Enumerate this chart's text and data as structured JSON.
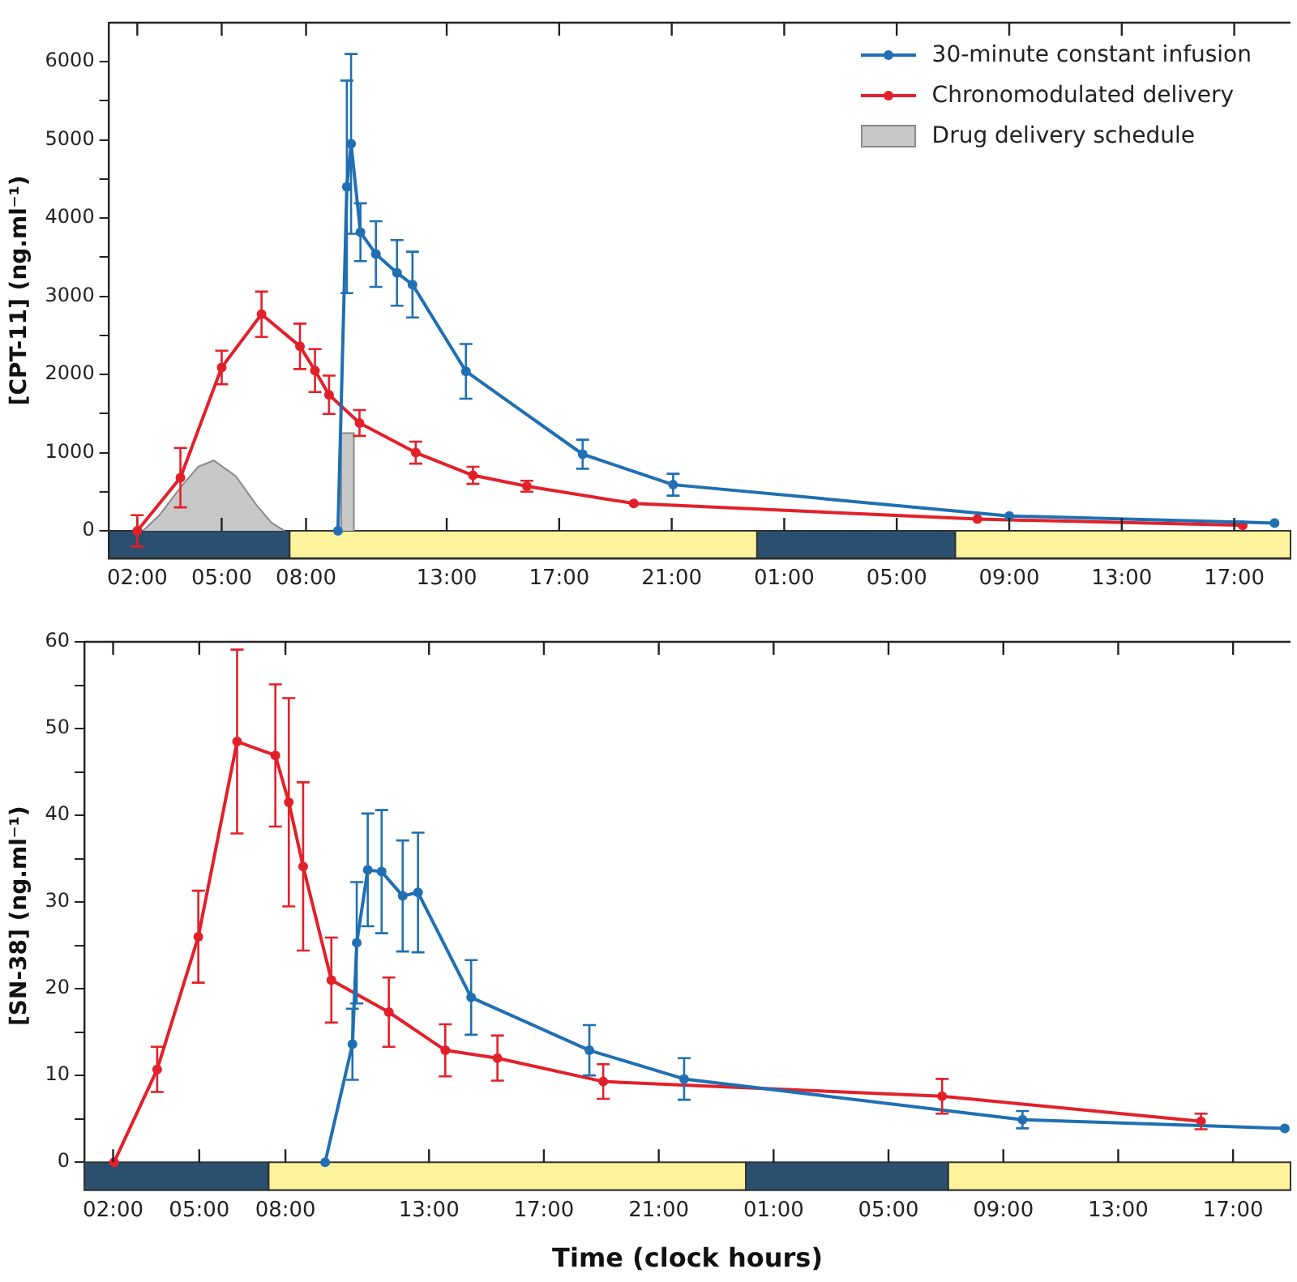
{
  "chart_data": [
    {
      "type": "line",
      "ylabel": "[CPT-11] (ng.ml⁻¹)",
      "legend": "top right",
      "grid": false,
      "xlim": [
        "--01-01T01:00",
        "--01-02T19:00"
      ],
      "xticks": [
        {
          "value": "--01-01T02:00",
          "label": "02:00"
        },
        {
          "value": "--01-01T05:00",
          "label": "05:00"
        },
        {
          "value": "--01-01T08:00",
          "label": "08:00"
        },
        {
          "value": "--01-01T13:00",
          "label": "13:00"
        },
        {
          "value": "--01-01T17:00",
          "label": "17:00"
        },
        {
          "value": "--01-01T21:00",
          "label": "21:00"
        },
        {
          "value": "--01-02T01:00",
          "label": "01:00"
        },
        {
          "value": "--01-02T05:00",
          "label": "05:00"
        },
        {
          "value": "--01-02T09:00",
          "label": "09:00"
        },
        {
          "value": "--01-02T13:00",
          "label": "13:00"
        },
        {
          "value": "--01-02T17:00",
          "label": "17:00"
        }
      ],
      "ylim": [
        -350,
        6500
      ],
      "yticks": [
        0,
        {
          "value": 500,
          "label": null
        },
        1000,
        {
          "value": 1500,
          "label": null
        },
        2000,
        {
          "value": 2500,
          "label": null
        },
        3000,
        {
          "value": 3500,
          "label": null
        },
        4000,
        {
          "value": 4500,
          "label": null
        },
        5000,
        {
          "value": 5500,
          "label": null
        },
        6000
      ],
      "bands": [
        {
          "axis": "x",
          "from": "--01-01T01:00",
          "to": "--01-01T07:25",
          "color": "#2b4f6e"
        },
        {
          "axis": "x",
          "from": "--01-01T07:25",
          "to": "--01-02T00:02",
          "color": "#fcf39c"
        },
        {
          "axis": "x",
          "from": "--01-02T00:02",
          "to": "--01-02T07:05",
          "color": "#2b4f6e"
        },
        {
          "axis": "x",
          "from": "--01-02T07:05",
          "to": "--01-02T19:00",
          "color": "#fcf39c"
        }
      ],
      "series": [
        {
          "name": "Drug delivery schedule",
          "type": "area",
          "marker": "none",
          "color": "#c8c8c8",
          "x": [
            "--01-01T02:12",
            "--01-01T02:47",
            "--01-01T03:34",
            "--01-01T04:10",
            "--01-01T04:43",
            "--01-01T05:30",
            "--01-01T06:14",
            "--01-01T06:47",
            "--01-01T07:14",
            "--01-01T08:30",
            "--01-01T09:15",
            "--01-01T09:15",
            "--01-01T09:42",
            "--01-01T09:42"
          ],
          "values": [
            0,
            200,
            570,
            820,
            900,
            700,
            330,
            100,
            0,
            null,
            0,
            1250,
            1250,
            0
          ]
        },
        {
          "name": "30-minute constant infusion",
          "marker": "circle",
          "color": "#1f6fb2",
          "x": [
            "--01-01T09:08",
            "--01-01T09:27",
            "--01-01T09:36",
            "--01-01T09:56",
            "--01-01T10:29",
            "--01-01T11:14",
            "--01-01T11:47",
            "--01-01T13:41",
            "--01-01T17:50",
            "--01-01T21:03",
            "--01-02T09:00",
            "--01-02T18:26"
          ],
          "values": [
            0,
            4400,
            4950,
            3820,
            3540,
            3300,
            3150,
            2040,
            980,
            590,
            190,
            100
          ],
          "errors": [
            null,
            1360,
            1150,
            370,
            420,
            420,
            420,
            350,
            185,
            140,
            null,
            null
          ]
        },
        {
          "name": "Chronomodulated delivery",
          "marker": "circle",
          "color": "#e3202a",
          "x": [
            "--01-01T02:00",
            "--01-01T03:32",
            "--01-01T05:00",
            "--01-01T06:25",
            "--01-01T07:47",
            "--01-01T08:19",
            "--01-01T08:49",
            "--01-01T09:54",
            "--01-01T11:54",
            "--01-01T13:56",
            "--01-01T15:51",
            "--01-01T19:39",
            "--01-02T07:52",
            "--01-02T17:18"
          ],
          "values": [
            0,
            680,
            2090,
            2770,
            2360,
            2050,
            1740,
            1380,
            1000,
            710,
            570,
            350,
            150,
            70
          ],
          "errors": [
            200,
            380,
            215,
            290,
            290,
            275,
            245,
            165,
            140,
            110,
            70,
            null,
            null,
            null
          ]
        }
      ]
    },
    {
      "type": "line",
      "ylabel": "[SN-38] (ng.ml⁻¹)",
      "xlabel": "Time (clock hours)",
      "grid": false,
      "xlim": [
        "--01-01T01:00",
        "--01-02T19:00"
      ],
      "xticks": [
        {
          "value": "--01-01T02:00",
          "label": "02:00"
        },
        {
          "value": "--01-01T05:00",
          "label": "05:00"
        },
        {
          "value": "--01-01T08:00",
          "label": "08:00"
        },
        {
          "value": "--01-01T13:00",
          "label": "13:00"
        },
        {
          "value": "--01-01T17:00",
          "label": "17:00"
        },
        {
          "value": "--01-01T21:00",
          "label": "21:00"
        },
        {
          "value": "--01-02T01:00",
          "label": "01:00"
        },
        {
          "value": "--01-02T05:00",
          "label": "05:00"
        },
        {
          "value": "--01-02T09:00",
          "label": "09:00"
        },
        {
          "value": "--01-02T13:00",
          "label": "13:00"
        },
        {
          "value": "--01-02T17:00",
          "label": "17:00"
        }
      ],
      "ylim": [
        -3.2,
        60
      ],
      "yticks": [
        0,
        {
          "value": 5,
          "label": null
        },
        10,
        {
          "value": 15,
          "label": null
        },
        20,
        {
          "value": 25,
          "label": null
        },
        30,
        {
          "value": 35,
          "label": null
        },
        40,
        {
          "value": 45,
          "label": null
        },
        50,
        {
          "value": 55,
          "label": null
        },
        60
      ],
      "bands": [
        {
          "axis": "x",
          "from": "--01-01T01:00",
          "to": "--01-01T07:25",
          "color": "#2b4f6e"
        },
        {
          "axis": "x",
          "from": "--01-01T07:25",
          "to": "--01-02T00:02",
          "color": "#fcf39c"
        },
        {
          "axis": "x",
          "from": "--01-02T00:02",
          "to": "--01-02T07:05",
          "color": "#2b4f6e"
        },
        {
          "axis": "x",
          "from": "--01-02T07:05",
          "to": "--01-02T19:00",
          "color": "#fcf39c"
        }
      ],
      "series": [
        {
          "marker": "circle",
          "color": "#1f6fb2",
          "x": [
            "--01-01T09:23",
            "--01-01T10:20",
            "--01-01T10:29",
            "--01-01T10:52",
            "--01-01T11:21",
            "--01-01T12:05",
            "--01-01T12:37",
            "--01-01T14:28",
            "--01-01T18:35",
            "--01-01T21:53",
            "--01-02T09:40",
            "--01-02T18:48"
          ],
          "values": [
            0,
            13.6,
            25.3,
            33.7,
            33.5,
            30.7,
            31.1,
            19.0,
            12.9,
            9.6,
            4.9,
            3.9
          ],
          "errors": [
            null,
            4.1,
            7,
            6.5,
            7.1,
            6.4,
            6.9,
            4.3,
            2.9,
            2.4,
            1.0,
            null
          ]
        },
        {
          "marker": "circle",
          "color": "#e3202a",
          "x": [
            "--01-01T02:02",
            "--01-01T03:32",
            "--01-01T04:58",
            "--01-01T06:19",
            "--01-01T07:39",
            "--01-01T08:07",
            "--01-01T08:37",
            "--01-01T09:36",
            "--01-01T11:36",
            "--01-01T13:34",
            "--01-01T15:23",
            "--01-01T19:04",
            "--01-02T06:52",
            "--01-02T15:53"
          ],
          "values": [
            0,
            10.7,
            26.0,
            48.5,
            46.9,
            41.5,
            34.1,
            21.0,
            17.3,
            12.9,
            12.0,
            9.3,
            7.6,
            4.7
          ],
          "errors": [
            null,
            2.6,
            5.3,
            10.6,
            8.2,
            12,
            9.7,
            4.9,
            4.0,
            3.0,
            2.6,
            2.0,
            2.0,
            0.9
          ]
        }
      ]
    }
  ]
}
